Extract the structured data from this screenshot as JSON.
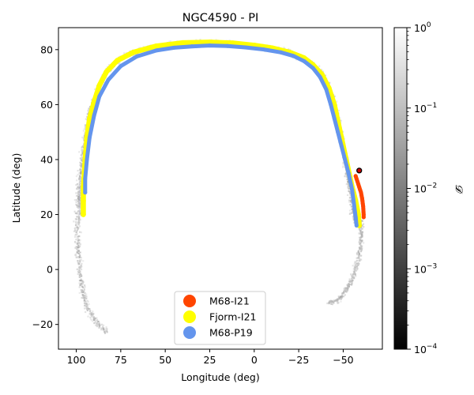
{
  "chart_data": {
    "type": "scatter",
    "title": "NGC4590 - PI",
    "xlabel": "Longitude (deg)",
    "ylabel": "Latitude (deg)",
    "xlim": [
      110,
      -72
    ],
    "ylim": [
      -29,
      88
    ],
    "xticks": [
      100,
      75,
      50,
      25,
      0,
      -25,
      -50
    ],
    "xtick_labels": [
      "100",
      "75",
      "50",
      "25",
      "0",
      "−25",
      "−50"
    ],
    "yticks": [
      -20,
      0,
      20,
      40,
      60,
      80
    ],
    "ytick_labels": [
      "−20",
      "0",
      "20",
      "40",
      "60",
      "80"
    ],
    "colorbar": {
      "label": "𝓓",
      "scale": "log",
      "range": [
        0.0001,
        1
      ],
      "tick_base": "10",
      "tick_exponents": [
        "0",
        "−1",
        "−2",
        "−3",
        "−4"
      ]
    },
    "density_model": {
      "name": "gray stream density",
      "upper_track": [
        [
          98,
          20
        ],
        [
          98,
          28
        ],
        [
          97,
          38
        ],
        [
          95,
          48
        ],
        [
          92,
          58
        ],
        [
          88,
          66
        ],
        [
          83,
          72
        ],
        [
          75,
          77
        ],
        [
          60,
          80.5
        ],
        [
          45,
          82
        ],
        [
          25,
          82.5
        ],
        [
          10,
          82
        ],
        [
          -5,
          81
        ],
        [
          -20,
          79
        ],
        [
          -30,
          76
        ],
        [
          -37,
          72
        ],
        [
          -42,
          67
        ],
        [
          -45,
          60
        ],
        [
          -48,
          52
        ],
        [
          -50,
          45
        ],
        [
          -52,
          36
        ],
        [
          -54,
          28
        ],
        [
          -56,
          18
        ]
      ],
      "lower_left_track": [
        [
          98,
          32
        ],
        [
          99,
          24
        ],
        [
          99.5,
          16
        ],
        [
          99,
          8
        ],
        [
          98,
          0
        ],
        [
          96.5,
          -8
        ],
        [
          94,
          -14
        ],
        [
          90,
          -18
        ],
        [
          86,
          -21
        ],
        [
          83,
          -23
        ]
      ],
      "lower_right_track": [
        [
          -60,
          18
        ],
        [
          -60,
          10
        ],
        [
          -58,
          2
        ],
        [
          -55,
          -4
        ],
        [
          -50,
          -9
        ],
        [
          -46,
          -11.5
        ],
        [
          -42,
          -12
        ]
      ]
    },
    "series": [
      {
        "name": "Fjorm-I21",
        "color": "#ffff00",
        "points": [
          [
            96,
            20
          ],
          [
            96,
            25
          ],
          [
            96,
            30
          ],
          [
            95.5,
            35
          ],
          [
            95,
            40
          ],
          [
            94,
            48
          ],
          [
            92.5,
            55
          ],
          [
            90,
            61
          ],
          [
            87,
            67
          ],
          [
            83,
            72
          ],
          [
            77,
            76
          ],
          [
            68,
            79
          ],
          [
            55,
            81.3
          ],
          [
            40,
            82.5
          ],
          [
            25,
            82.7
          ],
          [
            12,
            82.4
          ],
          [
            0,
            81.6
          ],
          [
            -10,
            80.6
          ],
          [
            -20,
            79
          ],
          [
            -28,
            77
          ],
          [
            -33,
            74.5
          ],
          [
            -38,
            71
          ],
          [
            -42,
            66
          ],
          [
            -45,
            60
          ],
          [
            -47,
            54
          ],
          [
            -49,
            48
          ],
          [
            -51,
            42
          ],
          [
            -53,
            36
          ],
          [
            -55,
            30
          ],
          [
            -57,
            25
          ],
          [
            -58.5,
            20
          ],
          [
            -59,
            16
          ]
        ]
      },
      {
        "name": "M68-P19",
        "color": "#6495ed",
        "points": [
          [
            95,
            28
          ],
          [
            95,
            33
          ],
          [
            94,
            40
          ],
          [
            92.5,
            48
          ],
          [
            90,
            56
          ],
          [
            87,
            63
          ],
          [
            82,
            69
          ],
          [
            75,
            74
          ],
          [
            66,
            77.5
          ],
          [
            55,
            79.7
          ],
          [
            45,
            80.7
          ],
          [
            35,
            81.2
          ],
          [
            25,
            81.5
          ],
          [
            15,
            81.3
          ],
          [
            5,
            80.8
          ],
          [
            -5,
            80.1
          ],
          [
            -15,
            79
          ],
          [
            -22,
            77.7
          ],
          [
            -28,
            75.8
          ],
          [
            -33,
            73.3
          ],
          [
            -37,
            70
          ],
          [
            -40.5,
            65.5
          ],
          [
            -43,
            60
          ],
          [
            -45,
            55
          ],
          [
            -47,
            50
          ],
          [
            -49,
            45
          ],
          [
            -51,
            40
          ],
          [
            -53,
            35
          ],
          [
            -55,
            29
          ],
          [
            -56,
            24
          ],
          [
            -57,
            19
          ],
          [
            -57.5,
            16
          ]
        ]
      },
      {
        "name": "M68-I21",
        "color": "#ff4500",
        "points": [
          [
            -57,
            34
          ],
          [
            -57.5,
            33
          ],
          [
            -58,
            32
          ],
          [
            -58.5,
            31
          ],
          [
            -59,
            30
          ],
          [
            -59.5,
            29
          ],
          [
            -60,
            28
          ],
          [
            -60.3,
            27
          ],
          [
            -60.6,
            26
          ],
          [
            -60.8,
            25
          ],
          [
            -61,
            24
          ],
          [
            -61.2,
            23
          ],
          [
            -61.3,
            22
          ],
          [
            -61.4,
            21
          ],
          [
            -61.5,
            20
          ],
          [
            -61.5,
            19
          ]
        ]
      }
    ],
    "progenitor": {
      "name": "NGC4590",
      "lon": -59,
      "lat": 36,
      "color": "#cc0000"
    },
    "legend": {
      "position": "bottom-center",
      "entries": [
        {
          "label": "M68-I21",
          "color": "#ff4500"
        },
        {
          "label": "Fjorm-I21",
          "color": "#ffff00"
        },
        {
          "label": "M68-P19",
          "color": "#6495ed"
        }
      ]
    }
  }
}
